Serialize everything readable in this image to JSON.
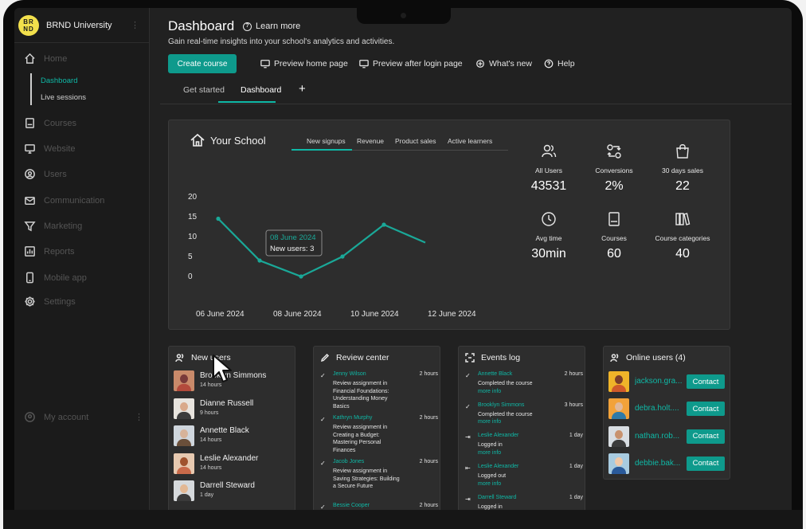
{
  "app": {
    "brand_initials_1": "BR",
    "brand_initials_2": "ND",
    "brand_name": "BRND University"
  },
  "sidebar": {
    "items": [
      {
        "label": "Home",
        "icon": "home-icon"
      },
      {
        "label": "Courses",
        "icon": "book-icon"
      },
      {
        "label": "Website",
        "icon": "monitor-icon"
      },
      {
        "label": "Users",
        "icon": "user-circle-icon"
      },
      {
        "label": "Communication",
        "icon": "mail-icon"
      },
      {
        "label": "Marketing",
        "icon": "funnel-icon"
      },
      {
        "label": "Reports",
        "icon": "chart-icon"
      },
      {
        "label": "Mobile app",
        "icon": "phone-icon"
      },
      {
        "label": "Settings",
        "icon": "gear-icon"
      }
    ],
    "sub_items": [
      "Dashboard",
      "Live sessions"
    ],
    "account": "My account"
  },
  "header": {
    "title": "Dashboard",
    "learn_more": "Learn more",
    "subtitle": "Gain real-time insights into your school's analytics and activities.",
    "create_course": "Create course",
    "toolbar": [
      "Preview home page",
      "Preview after login page",
      "What's new",
      "Help"
    ],
    "tabs": [
      "Get started",
      "Dashboard"
    ],
    "add_tab": "+"
  },
  "school": {
    "title": "Your School",
    "chart_tabs": [
      "New signups",
      "Revenue",
      "Product sales",
      "Active learners"
    ],
    "tooltip_date": "08 June 2024",
    "tooltip_value": "New users: 3",
    "stats": [
      {
        "label": "All Users",
        "value": "43531",
        "icon": "users-icon"
      },
      {
        "label": "Conversions",
        "value": "2%",
        "icon": "conversion-icon"
      },
      {
        "label": "30 days sales",
        "value": "22",
        "icon": "bag-icon"
      },
      {
        "label": "Avg time",
        "value": "30min",
        "icon": "clock-icon"
      },
      {
        "label": "Courses",
        "value": "60",
        "icon": "book-icon"
      },
      {
        "label": "Course categories",
        "value": "40",
        "icon": "library-icon"
      }
    ]
  },
  "chart_data": {
    "type": "line",
    "series": [
      {
        "values": [
          14.5,
          4,
          0,
          5,
          13,
          8.5
        ]
      }
    ],
    "x_ticks": [
      "06 June 2024",
      "08 June 2024",
      "10 June 2024",
      "12 June 2024"
    ],
    "y_ticks": [
      0,
      5,
      10,
      15,
      20
    ],
    "ylim": [
      0,
      20
    ],
    "color": "#1aa898"
  },
  "new_users": {
    "title": "New users",
    "rows": [
      {
        "name": "Brooklyn Simmons",
        "time": "14 hours"
      },
      {
        "name": "Dianne Russell",
        "time": "9 hours"
      },
      {
        "name": "Annette Black",
        "time": "14 hours"
      },
      {
        "name": "Leslie Alexander",
        "time": "14 hours"
      },
      {
        "name": "Darrell Steward",
        "time": "1 day"
      }
    ]
  },
  "review_center": {
    "title": "Review center",
    "rows": [
      {
        "user": "Jenny Wilson",
        "time": "2 hours",
        "text": "Review assignment in Financial Foundations: Understanding Money Basics"
      },
      {
        "user": "Kathryn Murphy",
        "time": "2 hours",
        "text": "Review assignment in Creating a Budget: Mastering Personal Finances"
      },
      {
        "user": "Jacob Jones",
        "time": "2 hours",
        "text": "Review assignment in Saving Strategies: Building a Secure Future"
      },
      {
        "user": "Bessie Cooper",
        "time": "2 hours",
        "text": ""
      }
    ]
  },
  "events_log": {
    "title": "Events log",
    "more_info": "more info",
    "rows": [
      {
        "user": "Annette Black",
        "time": "2 hours",
        "text": "Completed the course",
        "icon": "check-icon"
      },
      {
        "user": "Brooklyn Simmons",
        "time": "3 hours",
        "text": "Completed the course",
        "icon": "check-icon"
      },
      {
        "user": "Leslie Alexander",
        "time": "1 day",
        "text": "Logged in",
        "icon": "login-icon"
      },
      {
        "user": "Leslie Alexander",
        "time": "1 day",
        "text": "Logged out",
        "icon": "logout-icon"
      },
      {
        "user": "Darrell Steward",
        "time": "1 day",
        "text": "Logged in",
        "icon": "login-icon"
      }
    ]
  },
  "online_users": {
    "title": "Online users (4)",
    "contact": "Contact",
    "rows": [
      {
        "name": "jackson.gra..."
      },
      {
        "name": "debra.holt...."
      },
      {
        "name": "nathan.rob..."
      },
      {
        "name": "debbie.bak..."
      }
    ]
  },
  "colors": {
    "accent": "#0e9a8c",
    "teal_text": "#0fb8a6",
    "brand_yellow": "#f2e04c"
  }
}
